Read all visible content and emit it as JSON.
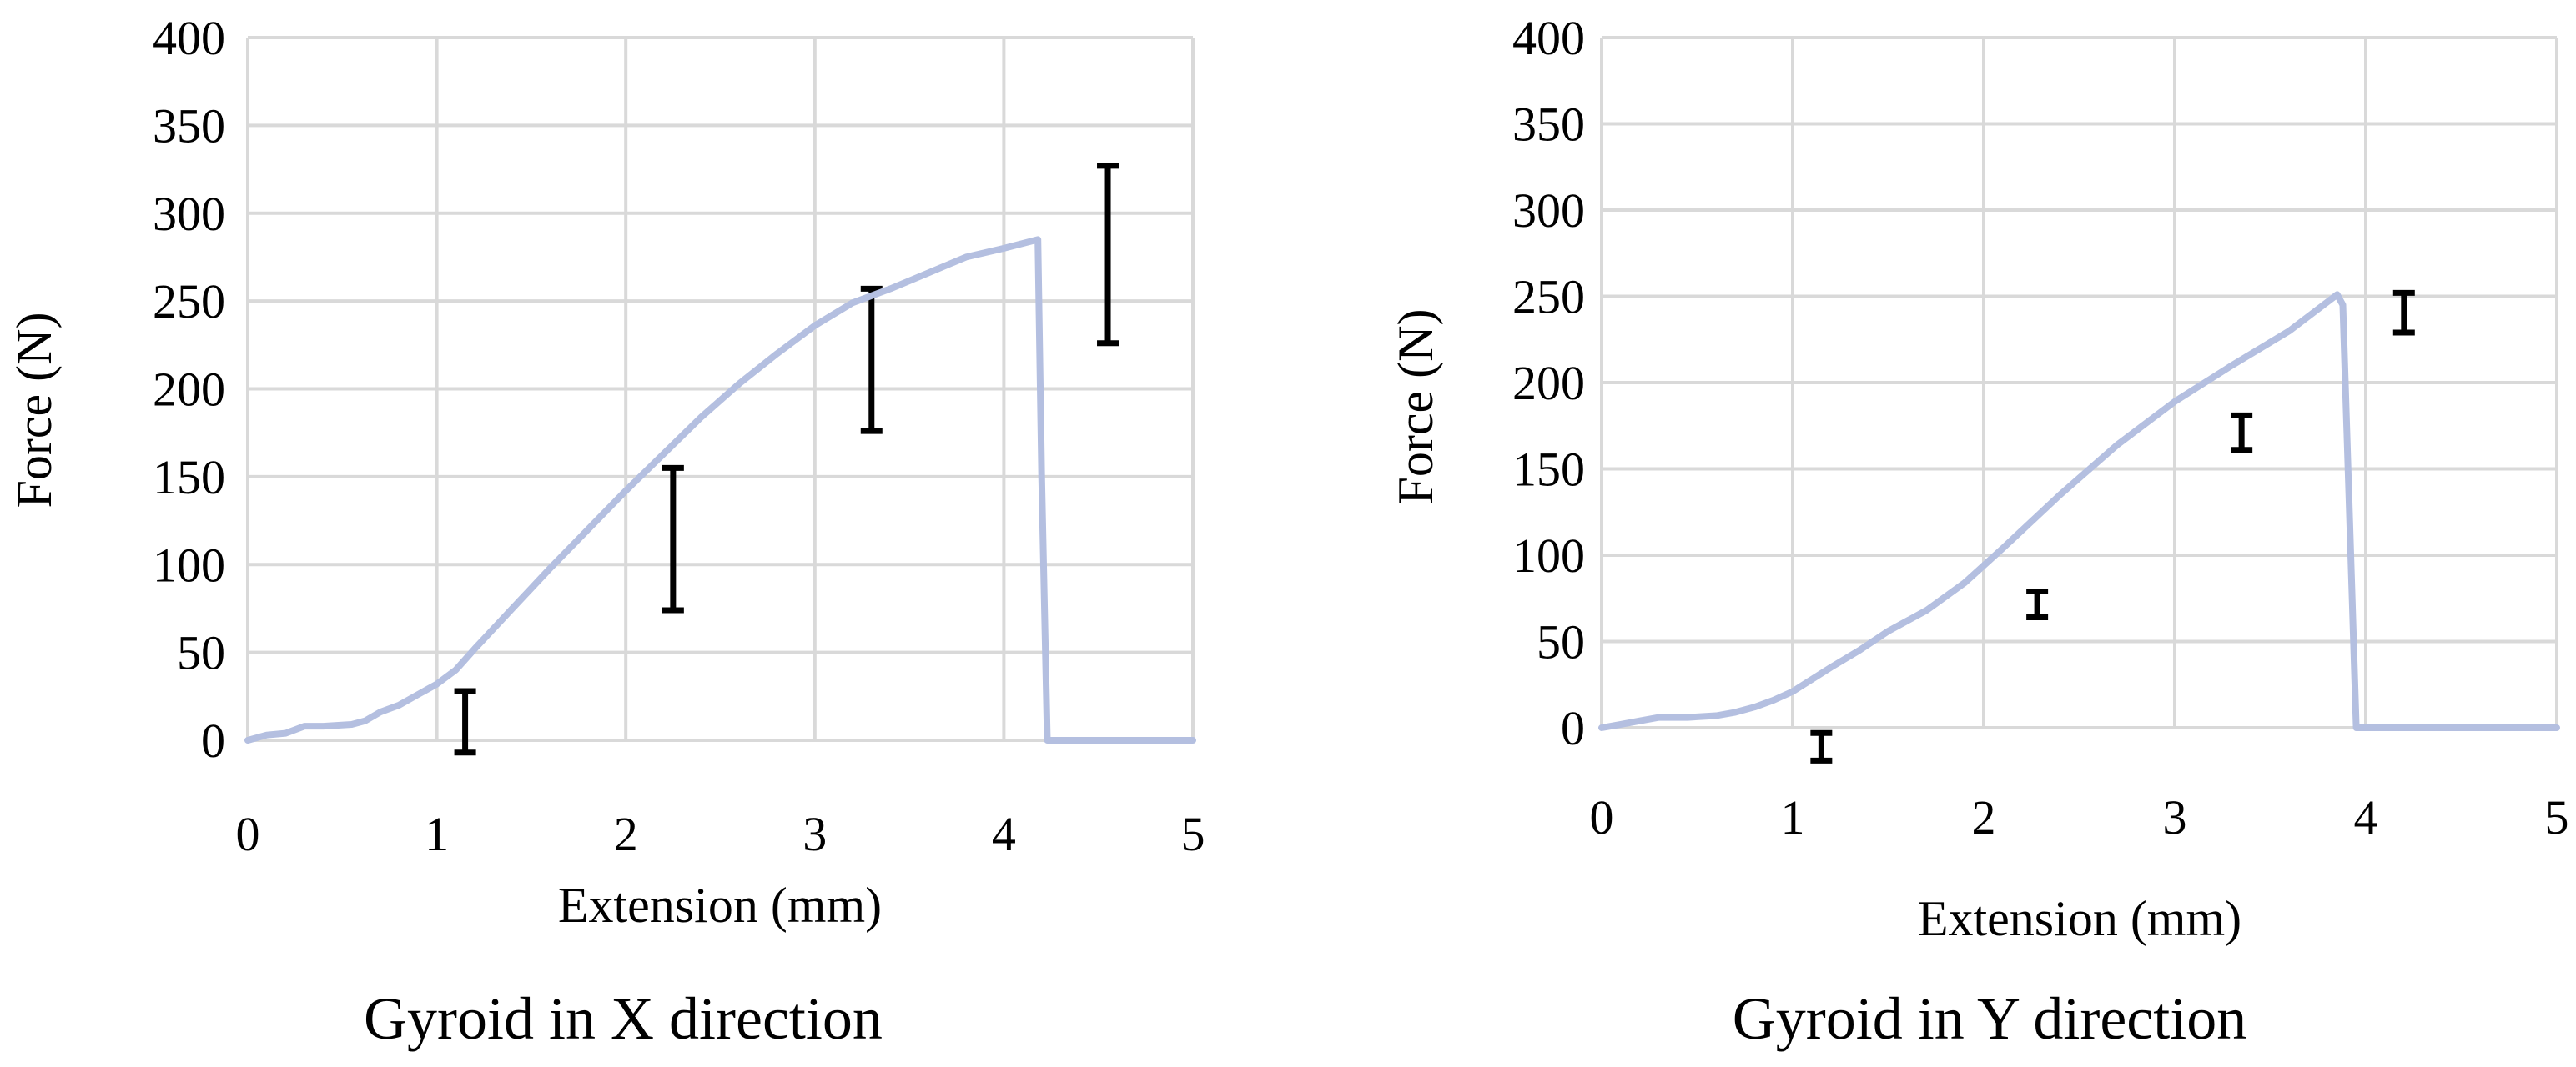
{
  "figure": {
    "charts_count": 2
  },
  "chart_data": [
    {
      "type": "line",
      "title": "Gyroid in X direction",
      "xlabel": "Extension (mm)",
      "ylabel": "Force (N)",
      "xlim": [
        0,
        5
      ],
      "ylim": [
        0,
        400
      ],
      "xticks": [
        0,
        1,
        2,
        3,
        4,
        5
      ],
      "yticks": [
        0,
        50,
        100,
        150,
        200,
        250,
        300,
        350,
        400
      ],
      "grid": true,
      "line_color": "#b4bfe0",
      "error_bar_color": "#000000",
      "series": [
        {
          "name": "Force",
          "x": [
            0,
            0.1,
            0.2,
            0.3,
            0.4,
            0.55,
            0.62,
            0.7,
            0.8,
            0.9,
            1.0,
            1.1,
            1.2,
            1.4,
            1.6,
            1.8,
            2.0,
            2.2,
            2.4,
            2.6,
            2.8,
            3.0,
            3.2,
            3.4,
            3.6,
            3.8,
            4.0,
            4.18,
            4.2,
            4.23,
            5.0
          ],
          "y": [
            0,
            3,
            4,
            8,
            8,
            9,
            11,
            16,
            20,
            26,
            32,
            40,
            52,
            75,
            98,
            120,
            142,
            163,
            184,
            203,
            220,
            236,
            249,
            257,
            266,
            275,
            280,
            285,
            150,
            0,
            0
          ]
        }
      ],
      "error_bars": [
        {
          "x": 1.15,
          "low": -7,
          "high": 28
        },
        {
          "x": 2.25,
          "low": 74,
          "high": 155
        },
        {
          "x": 3.3,
          "low": 176,
          "high": 257
        },
        {
          "x": 4.55,
          "low": 226,
          "high": 327
        }
      ]
    },
    {
      "type": "line",
      "title": "Gyroid in Y direction",
      "xlabel": "Extension (mm)",
      "ylabel": "Force (N)",
      "xlim": [
        0,
        5
      ],
      "ylim": [
        0,
        400
      ],
      "xticks": [
        0,
        1,
        2,
        3,
        4,
        5
      ],
      "yticks": [
        0,
        50,
        100,
        150,
        200,
        250,
        300,
        350,
        400
      ],
      "grid": true,
      "line_color": "#b4bfe0",
      "error_bar_color": "#000000",
      "series": [
        {
          "name": "Force",
          "x": [
            0,
            0.1,
            0.2,
            0.3,
            0.45,
            0.6,
            0.7,
            0.8,
            0.9,
            1.0,
            1.1,
            1.2,
            1.35,
            1.5,
            1.7,
            1.9,
            2.1,
            2.4,
            2.7,
            3.0,
            3.3,
            3.6,
            3.85,
            3.88,
            3.95,
            5.0
          ],
          "y": [
            0,
            2,
            4,
            6,
            6,
            7,
            9,
            12,
            16,
            21,
            28,
            35,
            45,
            56,
            68,
            84,
            104,
            135,
            164,
            189,
            210,
            230,
            251,
            245,
            0,
            0
          ]
        }
      ],
      "error_bars": [
        {
          "x": 1.15,
          "low": -19,
          "high": -3
        },
        {
          "x": 2.28,
          "low": 64,
          "high": 79
        },
        {
          "x": 3.35,
          "low": 161,
          "high": 181
        },
        {
          "x": 4.2,
          "low": 229,
          "high": 252
        }
      ]
    }
  ]
}
